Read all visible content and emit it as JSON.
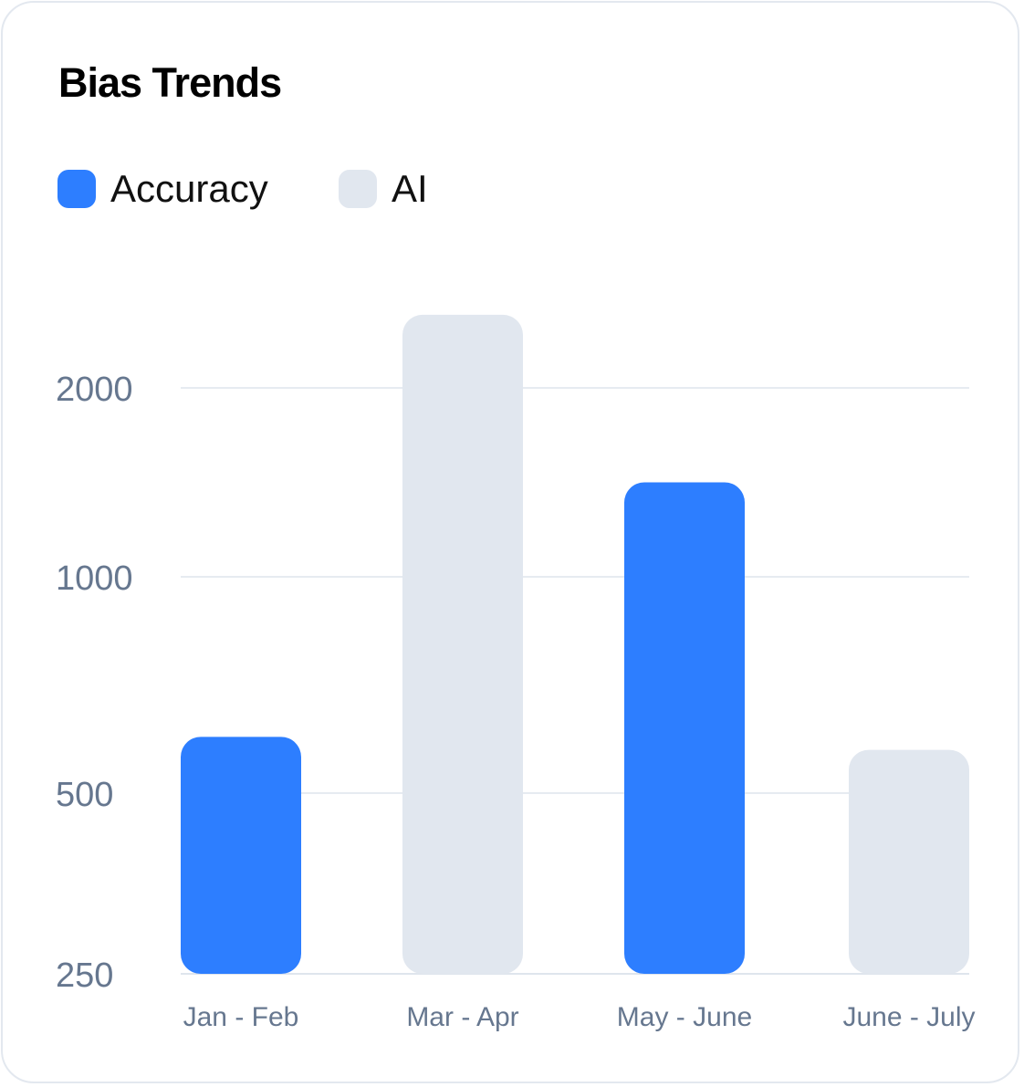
{
  "chart_data": {
    "type": "bar",
    "title": "Bias Trends",
    "categories": [
      "Jan - Feb",
      "Mar - Apr",
      "May - June",
      "June - July"
    ],
    "series": [
      {
        "name": "Accuracy",
        "color": "#2d7eff",
        "values": [
          630,
          null,
          1500,
          null
        ]
      },
      {
        "name": "AI",
        "color": "#e1e7ef",
        "values": [
          null,
          2450,
          null,
          600
        ]
      }
    ],
    "bar_colors": [
      "#2d7eff",
      "#e1e7ef",
      "#2d7eff",
      "#e1e7ef"
    ],
    "bar_values": [
      630,
      2450,
      1500,
      600
    ],
    "yticks": [
      250,
      500,
      1000,
      2000
    ],
    "ytick_labels": [
      "250",
      "500",
      "1000",
      "2000"
    ],
    "ylim": [
      250,
      2500
    ],
    "grid": true,
    "legend_position": "top-left",
    "xlabel": "",
    "ylabel": ""
  }
}
